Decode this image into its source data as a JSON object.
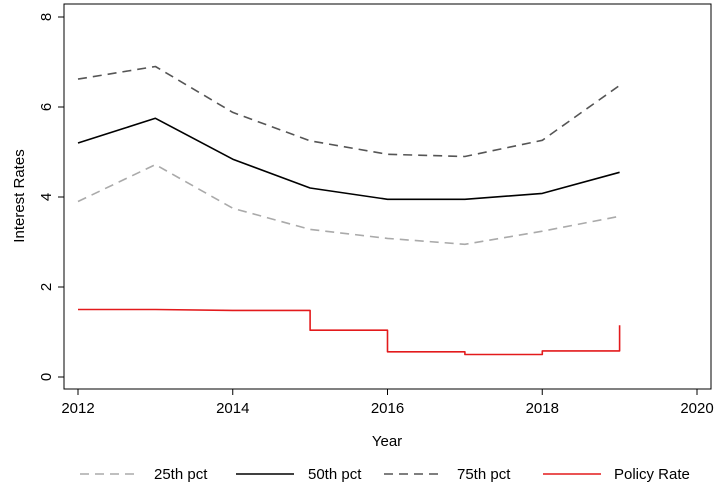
{
  "chart_data": {
    "type": "line",
    "xlabel": "Year",
    "ylabel": "Interest Rates",
    "xlim": [
      2012,
      2020
    ],
    "ylim": [
      0,
      8
    ],
    "xticks": [
      2012,
      2014,
      2016,
      2018,
      2020
    ],
    "yticks": [
      0,
      2,
      4,
      6,
      8
    ],
    "grid": false,
    "legend_position": "bottom",
    "series": [
      {
        "name": "25th pct",
        "color": "#aaaaaa",
        "style": "dashed",
        "x": [
          2012,
          2013,
          2014,
          2015,
          2016,
          2017,
          2018,
          2019
        ],
        "values": [
          3.9,
          4.72,
          3.75,
          3.28,
          3.08,
          2.95,
          3.24,
          3.57
        ]
      },
      {
        "name": "50th pct",
        "color": "#000000",
        "style": "solid",
        "x": [
          2012,
          2013,
          2014,
          2015,
          2016,
          2017,
          2018,
          2019
        ],
        "values": [
          5.2,
          5.75,
          4.84,
          4.2,
          3.95,
          3.95,
          4.08,
          4.55
        ]
      },
      {
        "name": "75th pct",
        "color": "#555555",
        "style": "dashed",
        "x": [
          2012,
          2013,
          2014,
          2015,
          2016,
          2017,
          2018,
          2019
        ],
        "values": [
          6.62,
          6.9,
          5.88,
          5.25,
          4.95,
          4.9,
          5.26,
          6.48
        ]
      },
      {
        "name": "Policy Rate",
        "color": "#e31a1c",
        "style": "step",
        "x": [
          2012,
          2013,
          2014,
          2015,
          2015,
          2016,
          2016,
          2017,
          2017,
          2018,
          2018,
          2019,
          2019
        ],
        "values": [
          1.5,
          1.5,
          1.48,
          1.48,
          1.04,
          1.04,
          0.56,
          0.56,
          0.5,
          0.5,
          0.58,
          0.58,
          1.15
        ]
      }
    ]
  }
}
